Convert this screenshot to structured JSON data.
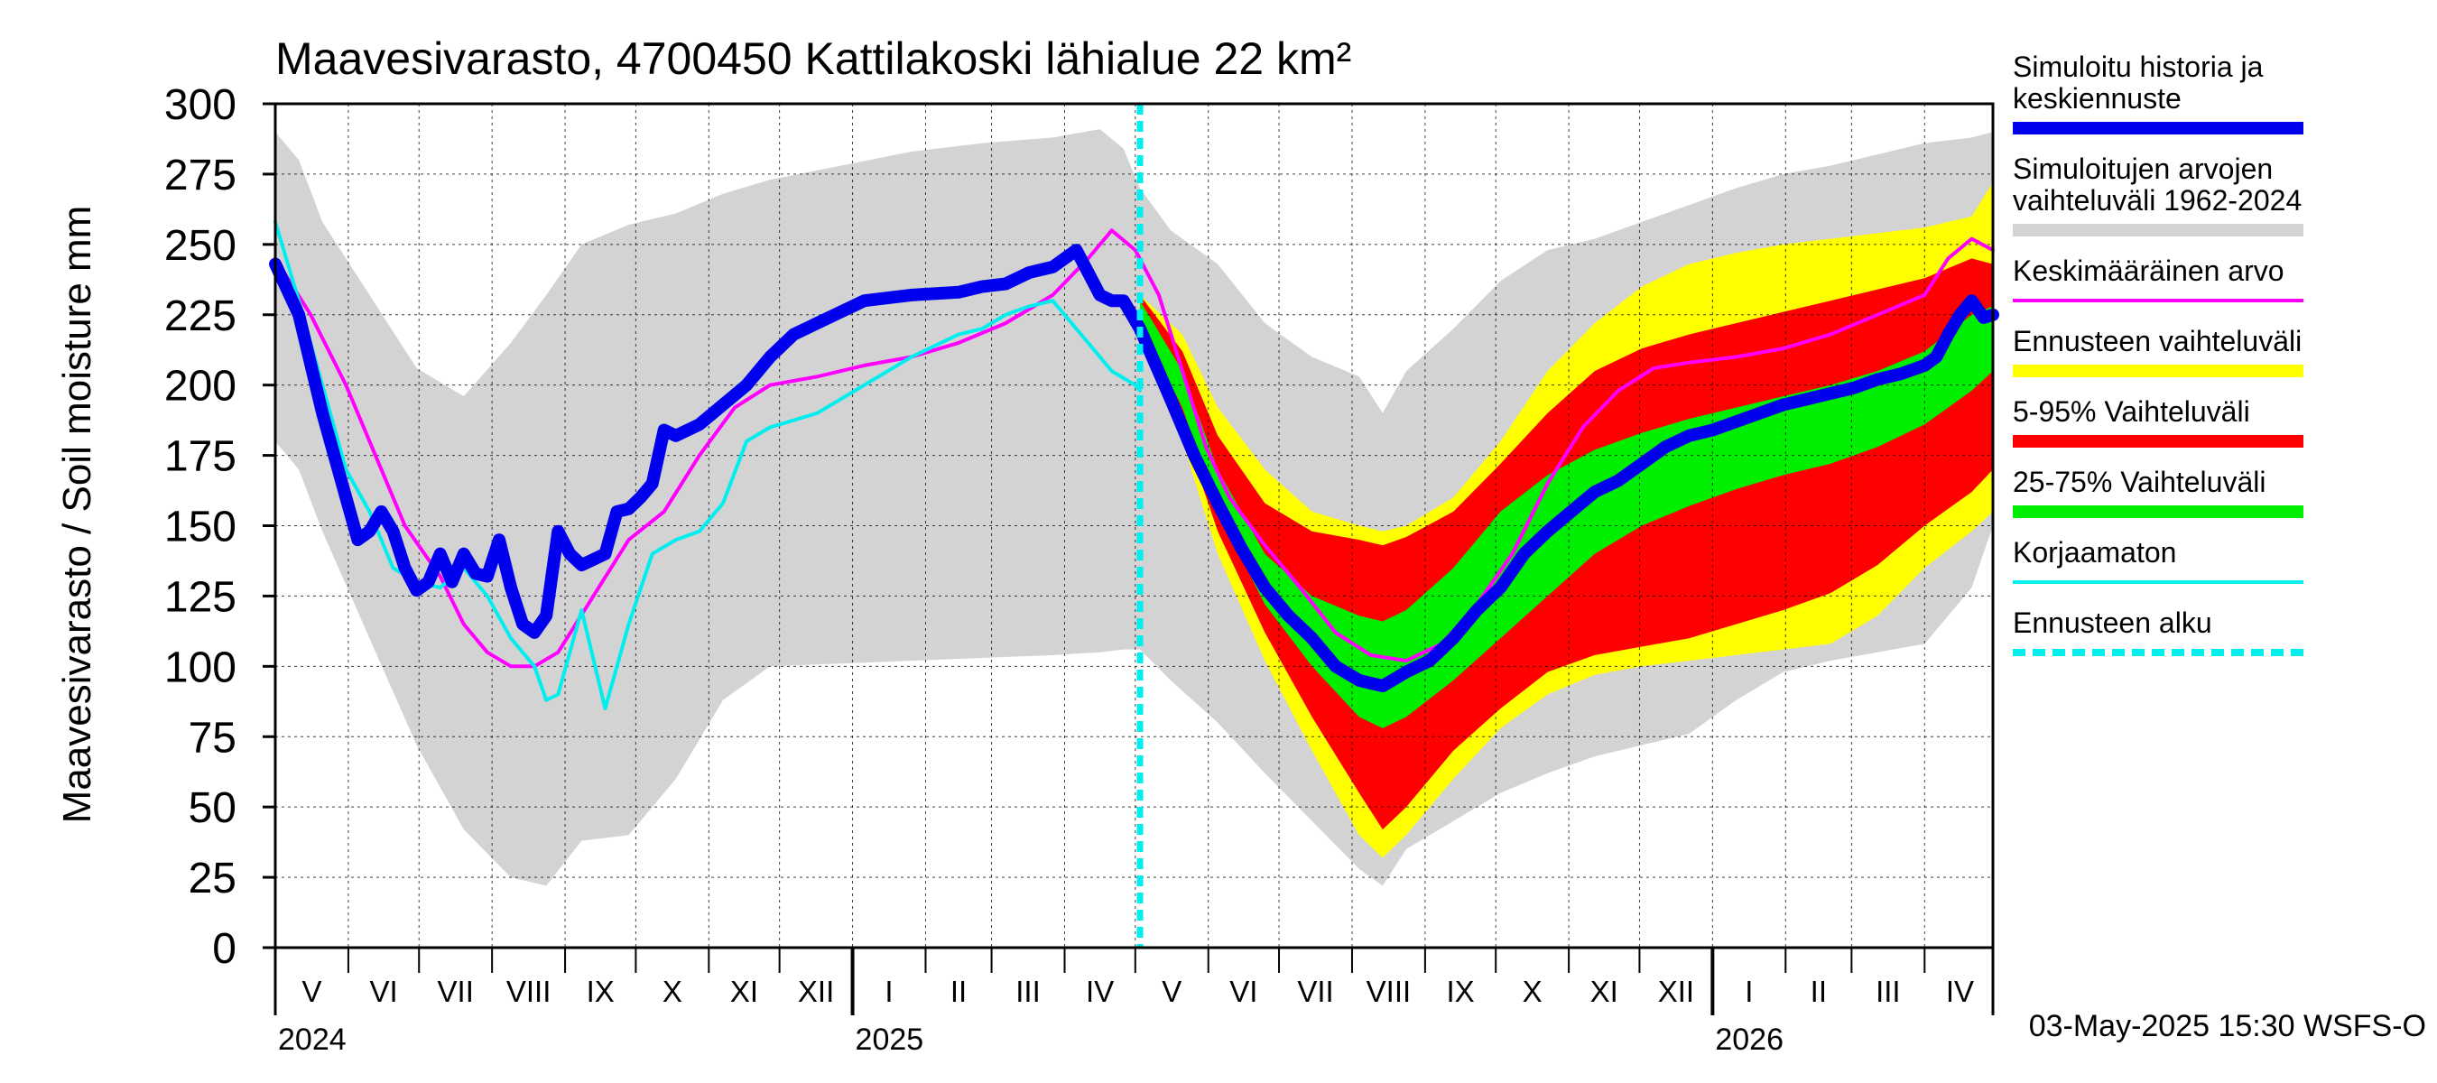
{
  "chart_data": {
    "type": "area",
    "title": "Maavesivarasto, 4700450 Kattilakoski lähialue 22 km²",
    "ylabel": "Maavesivarasto / Soil moisture   mm",
    "xlabel": "",
    "ylim": [
      0,
      300
    ],
    "yticks": [
      0,
      25,
      50,
      75,
      100,
      125,
      150,
      175,
      200,
      225,
      250,
      275,
      300
    ],
    "xlim_days": [
      0,
      729
    ],
    "grid": true,
    "months": [
      {
        "label": "V",
        "start": 0
      },
      {
        "label": "VI",
        "start": 31
      },
      {
        "label": "VII",
        "start": 61
      },
      {
        "label": "VIII",
        "start": 92
      },
      {
        "label": "IX",
        "start": 123
      },
      {
        "label": "X",
        "start": 153
      },
      {
        "label": "XI",
        "start": 184
      },
      {
        "label": "XII",
        "start": 214
      },
      {
        "label": "I",
        "start": 245
      },
      {
        "label": "II",
        "start": 276
      },
      {
        "label": "III",
        "start": 304
      },
      {
        "label": "IV",
        "start": 335
      },
      {
        "label": "V",
        "start": 365
      },
      {
        "label": "VI",
        "start": 396
      },
      {
        "label": "VII",
        "start": 426
      },
      {
        "label": "VIII",
        "start": 457
      },
      {
        "label": "IX",
        "start": 488
      },
      {
        "label": "X",
        "start": 518
      },
      {
        "label": "XI",
        "start": 549
      },
      {
        "label": "XII",
        "start": 579
      },
      {
        "label": "I",
        "start": 610
      },
      {
        "label": "II",
        "start": 641
      },
      {
        "label": "III",
        "start": 669
      },
      {
        "label": "IV",
        "start": 700
      }
    ],
    "month_ends": 730,
    "year_boundaries": [
      245,
      610
    ],
    "years": [
      {
        "label": "2024",
        "day": 0
      },
      {
        "label": "2025",
        "day": 245
      },
      {
        "label": "2026",
        "day": 610
      }
    ],
    "forecast_start_day": 367,
    "timestamp": "03-May-2025 15:30 WSFS-O",
    "legend": [
      {
        "label": "Simuloitu historia ja keskiennuste",
        "lines": [
          "Simuloitu historia ja",
          "keskiennuste"
        ],
        "color": "#0000ee",
        "style": "thick"
      },
      {
        "label": "Simuloitujen arvojen vaihteluväli 1962-2024",
        "lines": [
          "Simuloitujen arvojen",
          "vaihteluväli 1962-2024"
        ],
        "color": "#d3d3d3",
        "style": "band"
      },
      {
        "label": "Keskimääräinen arvo",
        "lines": [
          "Keskimääräinen arvo"
        ],
        "color": "#ff00ff",
        "style": "line"
      },
      {
        "label": "Ennusteen vaihteluväli",
        "lines": [
          "Ennusteen vaihteluväli"
        ],
        "color": "#ffff00",
        "style": "band"
      },
      {
        "label": "5-95% Vaihteluväli",
        "lines": [
          "5-95% Vaihteluväli"
        ],
        "color": "#ff0000",
        "style": "band"
      },
      {
        "label": "25-75% Vaihteluväli",
        "lines": [
          "25-75% Vaihteluväli"
        ],
        "color": "#00ee00",
        "style": "band"
      },
      {
        "label": "Korjaamaton",
        "lines": [
          "Korjaamaton"
        ],
        "color": "#00eeee",
        "style": "line"
      },
      {
        "label": "Ennusteen alku",
        "lines": [
          "Ennusteen alku"
        ],
        "color": "#00eeee",
        "style": "dashed"
      }
    ],
    "series": {
      "hist_range": {
        "x": [
          0,
          10,
          20,
          40,
          60,
          80,
          100,
          115,
          130,
          150,
          170,
          190,
          210,
          240,
          270,
          300,
          330,
          350,
          360,
          367,
          380,
          400,
          420,
          440,
          460,
          470,
          480,
          500,
          520,
          540,
          560,
          580,
          600,
          620,
          640,
          660,
          680,
          700,
          720,
          729
        ],
        "hi": [
          290,
          280,
          258,
          232,
          206,
          196,
          215,
          232,
          250,
          257,
          261,
          268,
          273,
          278,
          283,
          286,
          288,
          291,
          284,
          270,
          255,
          243,
          222,
          210,
          203,
          190,
          205,
          220,
          237,
          248,
          252,
          258,
          264,
          270,
          275,
          278,
          282,
          286,
          288,
          290
        ],
        "lo": [
          180,
          170,
          148,
          110,
          72,
          42,
          25,
          22,
          38,
          40,
          60,
          88,
          100,
          101,
          102,
          103,
          104,
          105,
          106,
          106,
          95,
          80,
          62,
          45,
          28,
          22,
          35,
          45,
          55,
          62,
          68,
          72,
          76,
          88,
          98,
          102,
          105,
          108,
          128,
          150
        ]
      },
      "forecast_range": {
        "x": [
          367,
          385,
          400,
          420,
          440,
          460,
          470,
          480,
          500,
          520,
          540,
          560,
          580,
          600,
          620,
          640,
          660,
          680,
          700,
          720,
          729
        ],
        "hi": [
          232,
          218,
          192,
          170,
          155,
          150,
          148,
          150,
          160,
          180,
          205,
          222,
          235,
          243,
          247,
          250,
          252,
          254,
          256,
          260,
          272
        ],
        "lo": [
          215,
          180,
          140,
          102,
          70,
          40,
          32,
          40,
          60,
          78,
          90,
          97,
          100,
          102,
          104,
          106,
          108,
          118,
          135,
          148,
          155
        ]
      },
      "p5_95": {
        "x": [
          367,
          385,
          400,
          420,
          440,
          460,
          470,
          480,
          500,
          520,
          540,
          560,
          580,
          600,
          620,
          640,
          660,
          680,
          700,
          720,
          729
        ],
        "hi": [
          232,
          212,
          182,
          158,
          148,
          145,
          143,
          146,
          155,
          172,
          190,
          205,
          213,
          218,
          222,
          226,
          230,
          234,
          238,
          245,
          243
        ],
        "lo": [
          218,
          185,
          148,
          112,
          82,
          55,
          42,
          50,
          70,
          85,
          98,
          104,
          107,
          110,
          115,
          120,
          126,
          136,
          150,
          162,
          170
        ]
      },
      "p25_75": {
        "x": [
          367,
          385,
          400,
          420,
          440,
          460,
          470,
          480,
          500,
          520,
          540,
          560,
          580,
          600,
          620,
          640,
          660,
          680,
          700,
          720,
          729
        ],
        "hi": [
          230,
          205,
          170,
          140,
          125,
          118,
          116,
          120,
          135,
          155,
          168,
          177,
          183,
          188,
          192,
          196,
          200,
          205,
          212,
          225,
          228
        ],
        "lo": [
          222,
          192,
          155,
          122,
          100,
          82,
          78,
          82,
          95,
          110,
          125,
          140,
          150,
          157,
          163,
          168,
          172,
          178,
          186,
          198,
          205
        ]
      },
      "mean": {
        "x": [
          0,
          15,
          30,
          45,
          55,
          70,
          80,
          90,
          100,
          110,
          120,
          135,
          150,
          165,
          180,
          195,
          210,
          230,
          250,
          270,
          290,
          310,
          330,
          345,
          355,
          365,
          375,
          385,
          395,
          405,
          420,
          435,
          450,
          465,
          480,
          495,
          510,
          525,
          540,
          555,
          570,
          585,
          600,
          620,
          640,
          660,
          680,
          700,
          710,
          720,
          729
        ],
        "y": [
          245,
          225,
          200,
          170,
          150,
          132,
          115,
          105,
          100,
          100,
          105,
          125,
          145,
          155,
          175,
          192,
          200,
          203,
          207,
          210,
          215,
          222,
          232,
          245,
          255,
          248,
          232,
          205,
          178,
          160,
          143,
          128,
          112,
          104,
          102,
          108,
          122,
          140,
          165,
          185,
          198,
          206,
          208,
          210,
          213,
          218,
          225,
          232,
          245,
          252,
          248
        ]
      },
      "uncorrected": {
        "x": [
          0,
          10,
          20,
          30,
          40,
          50,
          60,
          70,
          80,
          90,
          100,
          110,
          115,
          120,
          130,
          140,
          150,
          160,
          170,
          180,
          190,
          200,
          210,
          230,
          250,
          270,
          290,
          300,
          310,
          320,
          330,
          345,
          355,
          365,
          367
        ],
        "y": [
          258,
          230,
          200,
          170,
          155,
          135,
          130,
          128,
          135,
          125,
          110,
          100,
          88,
          90,
          120,
          85,
          115,
          140,
          145,
          148,
          158,
          180,
          185,
          190,
          200,
          210,
          218,
          220,
          225,
          228,
          230,
          215,
          205,
          200,
          198
        ]
      },
      "simulated": {
        "x": [
          0,
          10,
          20,
          30,
          35,
          40,
          45,
          50,
          55,
          60,
          65,
          70,
          75,
          80,
          85,
          90,
          95,
          100,
          105,
          110,
          115,
          120,
          125,
          130,
          135,
          140,
          145,
          150,
          155,
          160,
          165,
          170,
          180,
          190,
          200,
          210,
          220,
          230,
          250,
          270,
          290,
          300,
          310,
          320,
          330,
          335,
          340,
          345,
          350,
          355,
          360,
          367,
          380,
          390,
          400,
          410,
          420,
          430,
          440,
          450,
          460,
          470,
          480,
          490,
          500,
          510,
          520,
          530,
          540,
          550,
          560,
          570,
          580,
          590,
          600,
          610,
          620,
          630,
          640,
          650,
          660,
          670,
          680,
          690,
          700,
          705,
          710,
          715,
          720,
          725,
          729
        ],
        "y": [
          243,
          225,
          190,
          160,
          145,
          148,
          155,
          148,
          135,
          127,
          130,
          140,
          130,
          140,
          133,
          132,
          145,
          128,
          115,
          112,
          118,
          148,
          140,
          136,
          138,
          140,
          155,
          156,
          160,
          165,
          184,
          182,
          186,
          193,
          200,
          210,
          218,
          222,
          230,
          232,
          233,
          235,
          236,
          240,
          242,
          245,
          248,
          240,
          232,
          230,
          230,
          220,
          195,
          175,
          158,
          142,
          128,
          118,
          110,
          100,
          95,
          93,
          98,
          102,
          110,
          120,
          128,
          140,
          148,
          155,
          162,
          166,
          172,
          178,
          182,
          184,
          187,
          190,
          193,
          195,
          197,
          199,
          202,
          204,
          207,
          210,
          218,
          225,
          230,
          224,
          225
        ]
      }
    }
  }
}
